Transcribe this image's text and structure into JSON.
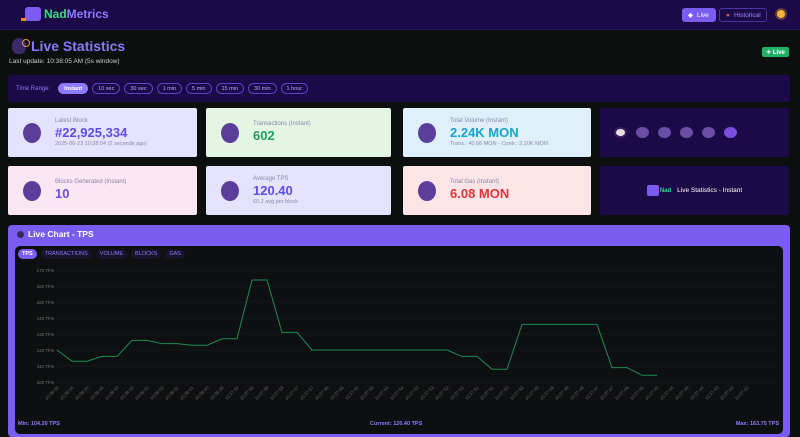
{
  "header": {
    "brand_a": "Nad",
    "brand_b": "Metrics",
    "nav": [
      {
        "label": "Live",
        "icon": "bird-icon",
        "active": true
      },
      {
        "label": "Historical",
        "icon": "monster-icon",
        "active": false
      }
    ],
    "theme_icon": "sun-icon"
  },
  "page": {
    "title": "Live Statistics",
    "last_update": "Last update: 10:38:05 AM  (5s window)",
    "badge": "✦ Live"
  },
  "time_range": {
    "label": "Time Range:",
    "options": [
      "Instant",
      "10 sec",
      "30 sec",
      "1 min",
      "5 min",
      "15 min",
      "30 min",
      "1 hour"
    ],
    "selected": "Instant"
  },
  "cards": [
    {
      "title": "Latest Block",
      "value": "#22,925,334",
      "sub": "2025-06-23 10:38:04 (2 seconds ago)",
      "color": "#5b4ee0",
      "bg": "#e6e3ff"
    },
    {
      "title": "Transactions (Instant)",
      "value": "602",
      "sub": "",
      "color": "#1fa060",
      "bg": "#e3f5e3"
    },
    {
      "title": "Total Volume (Instant)",
      "value": "2.24K MON",
      "sub": "Trans.: 40.66 MON - Contr.: 2.20K MON",
      "color": "#13a6c8",
      "bg": "#dff0fb"
    },
    {
      "title": "Blocks Generated (Instant)",
      "value": "10",
      "sub": "",
      "color": "#6a4ee0",
      "bg": "#fbe6f3"
    },
    {
      "title": "Average TPS",
      "value": "120.40",
      "sub": "60.2 avg per block",
      "color": "#5b4ee0",
      "bg": "#e6e3ff"
    },
    {
      "title": "Total Gas (Instant)",
      "value": "6.08 MON",
      "sub": "",
      "color": "#e0353a",
      "bg": "#fde4e6"
    }
  ],
  "promo": {
    "brand": "Nad",
    "text": "Live Statistics - Instant"
  },
  "chart": {
    "title": "Live Chart - TPS",
    "tabs": [
      "TPS",
      "TRANSACTIONS",
      "VOLUME",
      "BLOCKS",
      "GAS"
    ],
    "active_tab": "TPS",
    "min": "Min: 104.20 TPS",
    "current": "Current: 120.40 TPS",
    "max": "Max: 163.75 TPS"
  },
  "chart_data": {
    "type": "line",
    "ylim": [
      100,
      170
    ],
    "yticks": [
      "100 TPS",
      "110 TPS",
      "120 TPS",
      "130 TPS",
      "140 TPS",
      "150 TPS",
      "160 TPS",
      "170 TPS"
    ],
    "line_color": "#1f8a55",
    "grid": true,
    "x": [
      "10:38:05",
      "10:38:05",
      "10:38:04",
      "10:38:04",
      "10:38:03",
      "10:38:03",
      "10:38:02",
      "10:38:02",
      "10:38:01",
      "10:38:01",
      "10:38:00",
      "10:38:00",
      "10:37:59",
      "10:37:59",
      "10:37:58",
      "10:37:58",
      "10:37:57",
      "10:37:57",
      "10:37:56",
      "10:37:56",
      "10:37:55",
      "10:37:55",
      "10:37:54",
      "10:37:54",
      "10:37:53",
      "10:37:53",
      "10:37:52",
      "10:37:52",
      "10:37:51",
      "10:37:51",
      "10:37:50",
      "10:37:50",
      "10:37:49",
      "10:37:49",
      "10:37:48",
      "10:37:48",
      "10:37:47",
      "10:37:47",
      "10:37:46",
      "10:37:46",
      "10:37:45",
      "10:37:45",
      "10:37:44",
      "10:37:44",
      "10:37:43",
      "10:37:43",
      "10:37:42"
    ],
    "y": [
      120,
      113,
      113,
      116,
      116,
      126,
      126,
      124,
      124,
      123,
      123,
      127,
      127,
      163.75,
      163.75,
      131,
      131,
      120,
      120,
      120,
      120,
      120,
      120,
      120,
      120,
      120,
      120,
      116,
      116,
      108,
      108,
      136,
      136,
      136,
      136,
      136,
      136,
      109,
      109,
      104.2,
      104.2,
      null,
      null,
      null,
      null,
      null,
      null
    ]
  }
}
